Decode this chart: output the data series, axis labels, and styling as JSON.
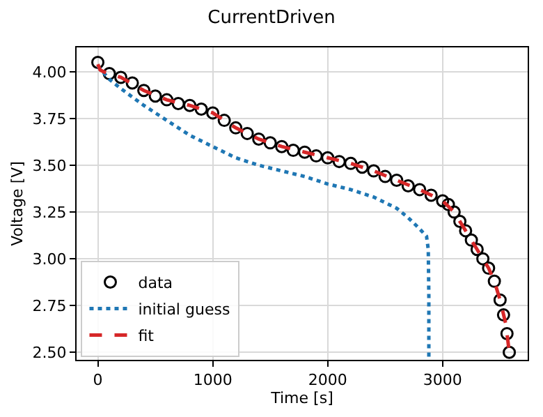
{
  "chart_data": {
    "type": "line",
    "title": "CurrentDriven",
    "xlabel": "Time [s]",
    "ylabel": "Voltage [V]",
    "xlim": [
      -185,
      3740
    ],
    "xticks": [
      0,
      1000,
      2000,
      3000
    ],
    "ylim": [
      2.46,
      4.13
    ],
    "yticks": [
      {
        "value": 2.5,
        "label": "2.50"
      },
      {
        "value": 2.75,
        "label": "2.75"
      },
      {
        "value": 3.0,
        "label": "3.00"
      },
      {
        "value": 3.25,
        "label": "3.25"
      },
      {
        "value": 3.5,
        "label": "3.50"
      },
      {
        "value": 3.75,
        "label": "3.75"
      },
      {
        "value": 4.0,
        "label": "4.00"
      }
    ],
    "grid": true,
    "legend": "bottom left",
    "series": [
      {
        "name": "data",
        "type": "scatter",
        "marker": "circle",
        "color": "#000000",
        "x": [
          0,
          100,
          200,
          300,
          400,
          500,
          600,
          700,
          800,
          900,
          1000,
          1100,
          1200,
          1300,
          1400,
          1500,
          1600,
          1700,
          1800,
          1900,
          2000,
          2100,
          2200,
          2300,
          2400,
          2500,
          2600,
          2700,
          2800,
          2900,
          3000,
          3050,
          3100,
          3150,
          3200,
          3250,
          3300,
          3350,
          3400,
          3450,
          3500,
          3530,
          3560,
          3580
        ],
        "values": [
          4.05,
          3.99,
          3.97,
          3.94,
          3.9,
          3.87,
          3.85,
          3.83,
          3.82,
          3.8,
          3.78,
          3.74,
          3.7,
          3.67,
          3.64,
          3.62,
          3.6,
          3.58,
          3.57,
          3.55,
          3.54,
          3.52,
          3.51,
          3.49,
          3.47,
          3.44,
          3.42,
          3.39,
          3.37,
          3.34,
          3.31,
          3.29,
          3.25,
          3.2,
          3.15,
          3.1,
          3.05,
          3.0,
          2.95,
          2.88,
          2.78,
          2.7,
          2.6,
          2.5
        ]
      },
      {
        "name": "initial guess",
        "line_style": "dotted",
        "color": "#1f77b4",
        "x": [
          0,
          100,
          200,
          400,
          600,
          800,
          1000,
          1200,
          1400,
          1600,
          1800,
          2000,
          2200,
          2400,
          2600,
          2700,
          2800,
          2860,
          2875,
          2880,
          2880
        ],
        "values": [
          4.03,
          3.96,
          3.91,
          3.82,
          3.74,
          3.66,
          3.6,
          3.54,
          3.5,
          3.47,
          3.44,
          3.4,
          3.37,
          3.33,
          3.27,
          3.22,
          3.16,
          3.12,
          3.05,
          2.8,
          2.47
        ]
      },
      {
        "name": "fit",
        "line_style": "dashed",
        "color": "#d62728",
        "x": [
          0,
          20,
          50,
          100,
          200,
          400,
          600,
          800,
          1000,
          1200,
          1400,
          1600,
          1800,
          2000,
          2200,
          2400,
          2600,
          2800,
          3000,
          3100,
          3200,
          3300,
          3400,
          3450,
          3500,
          3550,
          3580
        ],
        "values": [
          4.04,
          4.01,
          4.0,
          3.99,
          3.97,
          3.9,
          3.85,
          3.82,
          3.78,
          3.7,
          3.64,
          3.6,
          3.57,
          3.54,
          3.51,
          3.47,
          3.42,
          3.37,
          3.31,
          3.25,
          3.15,
          3.05,
          2.95,
          2.88,
          2.78,
          2.65,
          2.5
        ]
      }
    ]
  }
}
